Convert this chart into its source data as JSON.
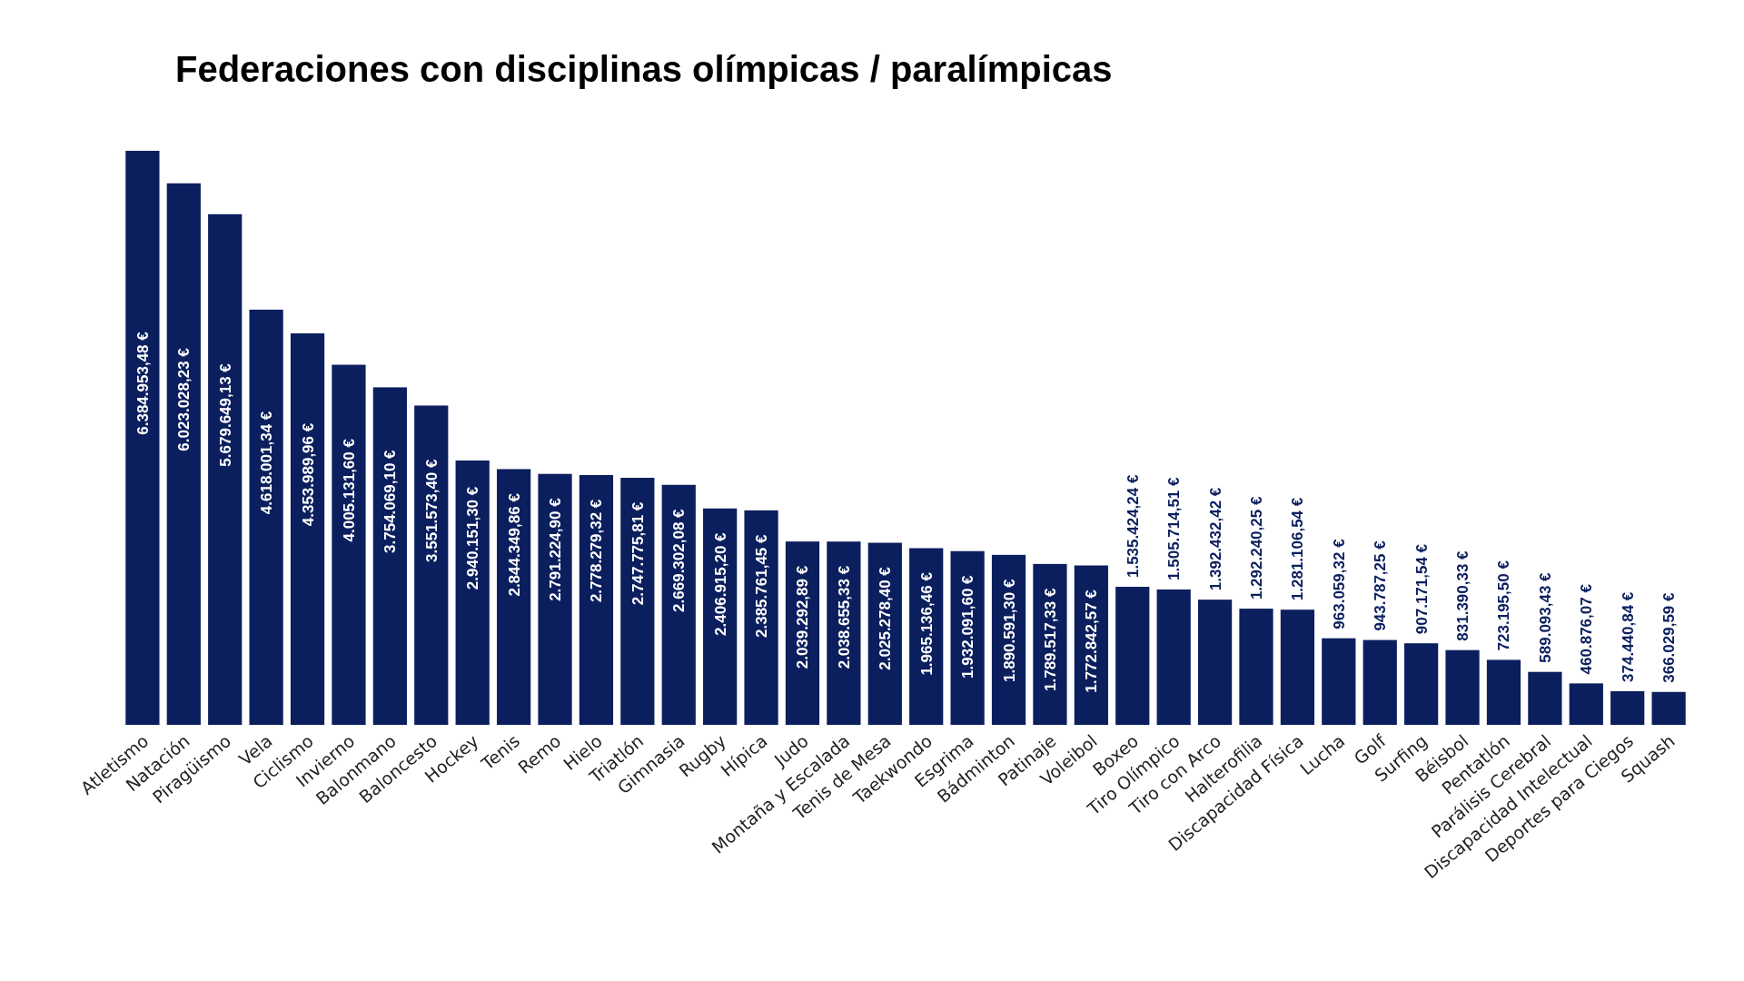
{
  "chart_data": {
    "type": "bar",
    "title": "Federaciones con disciplinas olímpicas / paralímpicas",
    "categories": [
      "Atletismo",
      "Natación",
      "Piragüismo",
      "Vela",
      "Ciclismo",
      "Invierno",
      "Balonmano",
      "Baloncesto",
      "Hockey",
      "Tenis",
      "Remo",
      "Hielo",
      "Triatlón",
      "Gimnasia",
      "Rugby",
      "Hípica",
      "Judo",
      "Montaña y Escalada",
      "Tenis de Mesa",
      "Taekwondo",
      "Esgrima",
      "Bádminton",
      "Patinaje",
      "Voleibol",
      "Boxeo",
      "Tiro Olímpico",
      "Tiro con Arco",
      "Halterofilia",
      "Discapacidad Física",
      "Lucha",
      "Golf",
      "Surfing",
      "Béisbol",
      "Pentatlón",
      "Parálisis Cerebral",
      "Discapacidad Intelectual",
      "Deportes para Ciegos",
      "Squash"
    ],
    "values": [
      6384953.48,
      6023028.23,
      5679649.13,
      4618001.34,
      4353989.96,
      4005131.6,
      3754069.1,
      3551573.4,
      2940151.3,
      2844349.86,
      2791224.9,
      2778279.32,
      2747775.81,
      2669302.08,
      2406915.2,
      2385761.45,
      2039292.89,
      2038655.33,
      2025278.4,
      1965136.46,
      1932091.6,
      1890591.3,
      1789517.33,
      1772842.57,
      1535424.24,
      1505714.51,
      1392432.42,
      1292240.25,
      1281106.54,
      963059.32,
      943787.25,
      907171.54,
      831390.33,
      723195.5,
      589093.43,
      460876.07,
      374440.84,
      366029.59
    ],
    "value_labels": [
      "6.384.953,48 €",
      "6.023.028,23 €",
      "5.679.649,13 €",
      "4.618.001,34 €",
      "4.353.989,96 €",
      "4.005.131,60 €",
      "3.754.069,10 €",
      "3.551.573,40 €",
      "2.940.151,30 €",
      "2.844.349,86 €",
      "2.791.224,90 €",
      "2.778.279,32 €",
      "2.747.775,81 €",
      "2.669.302,08 €",
      "2.406.915,20 €",
      "2.385.761,45 €",
      "2.039.292,89 €",
      "2.038.655,33 €",
      "2.025.278,40 €",
      "1.965.136,46 €",
      "1.932.091,60 €",
      "1.890.591,30 €",
      "1.789.517,33 €",
      "1.772.842,57 €",
      "1.535.424,24 €",
      "1.505.714,51 €",
      "1.392.432,42 €",
      "1.292.240,25 €",
      "1.281.106,54 €",
      "963.059,32 €",
      "943.787,25 €",
      "907.171,54 €",
      "831.390,33 €",
      "723.195,50 €",
      "589.093,43 €",
      "460.876,07 €",
      "374.440,84 €",
      "366.029,59 €"
    ],
    "color": "#0b1f5e"
  }
}
